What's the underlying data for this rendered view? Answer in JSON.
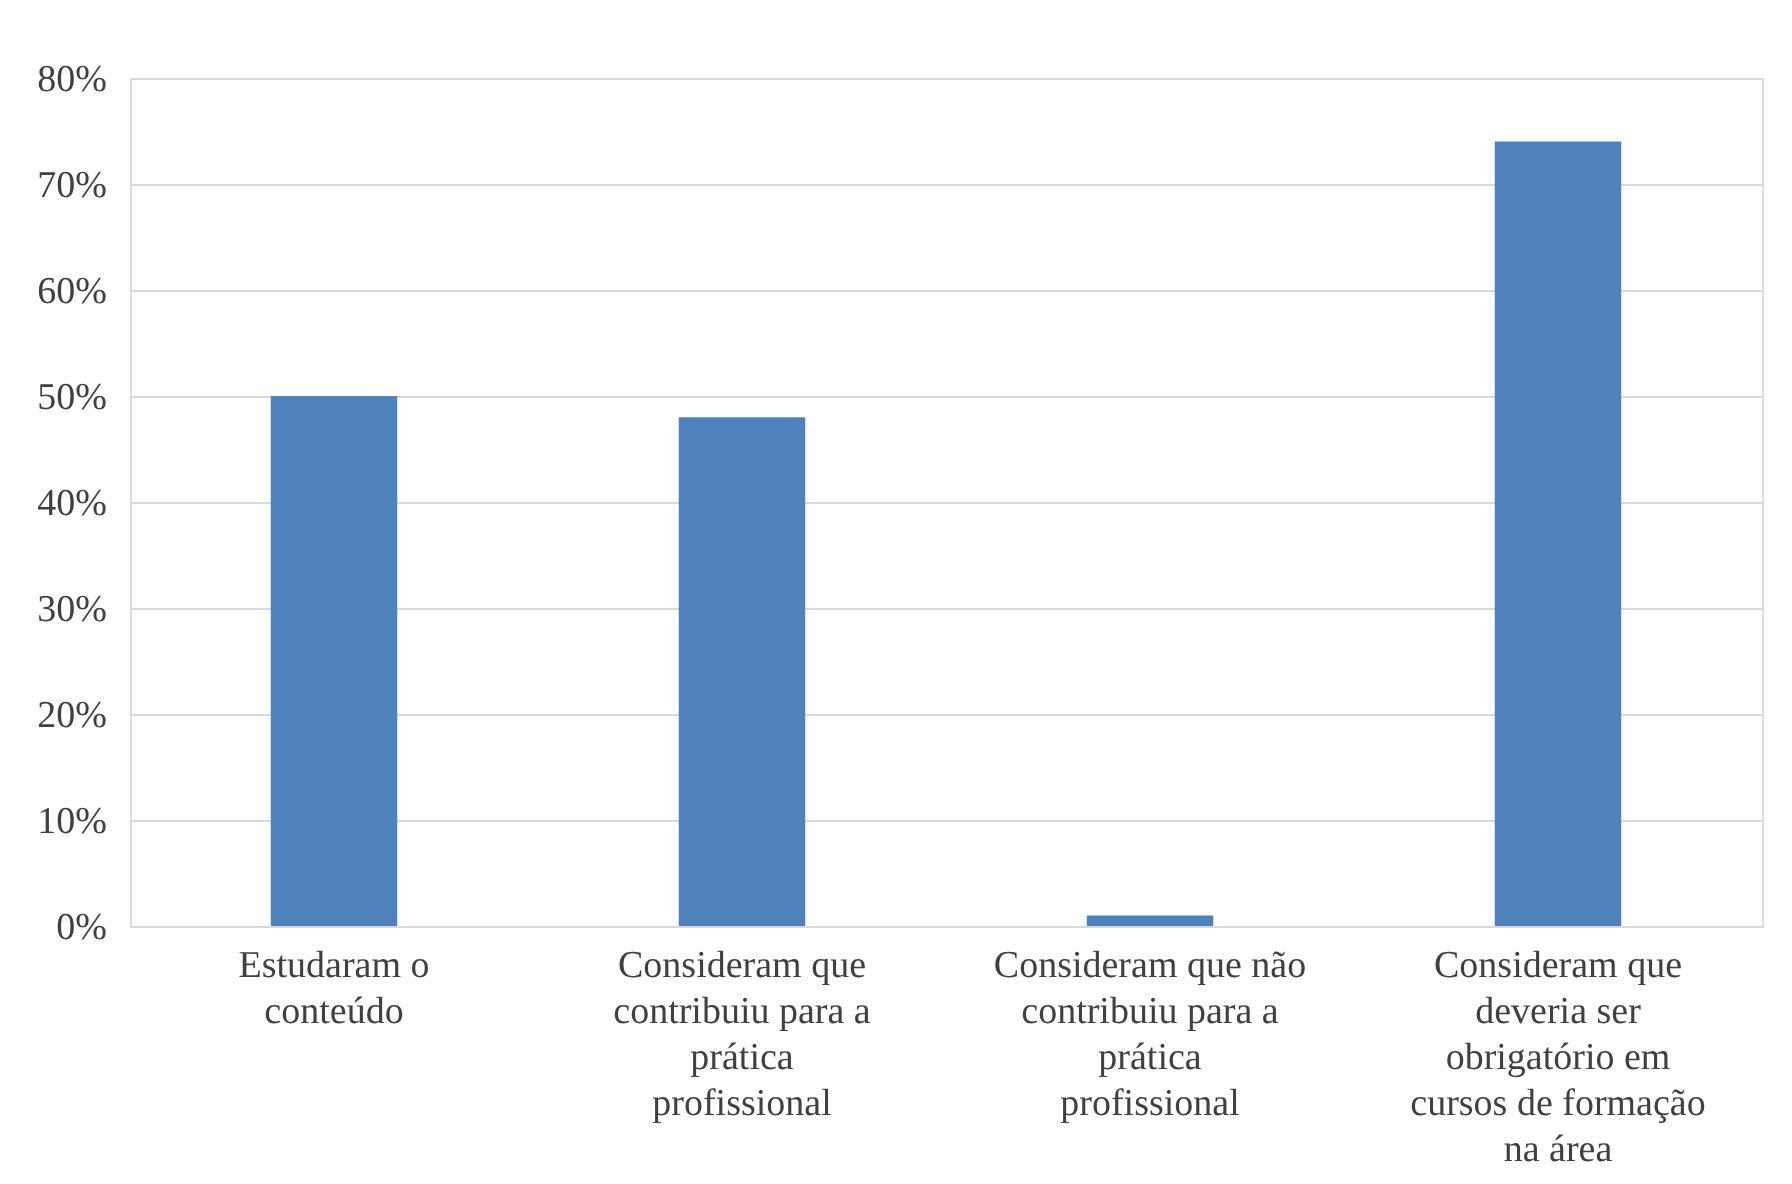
{
  "chart_data": {
    "type": "bar",
    "categories": [
      "Estudaram o conteúdo",
      "Consideram que contribuiu para a prática profissional",
      "Consideram que não contribuiu para a prática profissional",
      "Consideram que deveria ser obrigatório em cursos de formação na área"
    ],
    "values": [
      50,
      48,
      1,
      74
    ],
    "color": "#4f81bd",
    "ylim": [
      0,
      80
    ],
    "yticks": [
      {
        "value": 0,
        "label": "0%"
      },
      {
        "value": 10,
        "label": "10%"
      },
      {
        "value": 20,
        "label": "20%"
      },
      {
        "value": 30,
        "label": "30%"
      },
      {
        "value": 40,
        "label": "40%"
      },
      {
        "value": 50,
        "label": "50%"
      },
      {
        "value": 60,
        "label": "60%"
      },
      {
        "value": 70,
        "label": "70%"
      },
      {
        "value": 80,
        "label": "80%"
      }
    ],
    "grid": "y"
  }
}
